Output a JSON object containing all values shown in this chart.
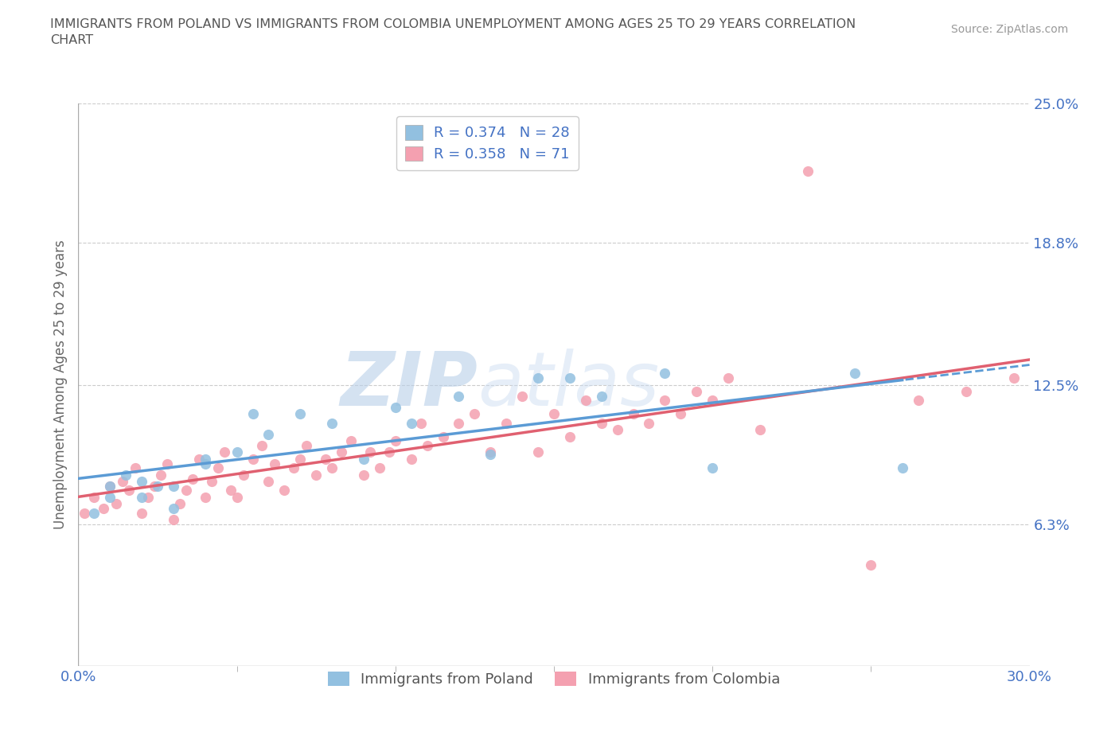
{
  "title": "IMMIGRANTS FROM POLAND VS IMMIGRANTS FROM COLOMBIA UNEMPLOYMENT AMONG AGES 25 TO 29 YEARS CORRELATION\nCHART",
  "source": "Source: ZipAtlas.com",
  "ylabel": "Unemployment Among Ages 25 to 29 years",
  "xlim": [
    0.0,
    0.3
  ],
  "ylim": [
    0.0,
    0.25
  ],
  "ytick_labels": [
    "6.3%",
    "12.5%",
    "18.8%",
    "25.0%"
  ],
  "ytick_values": [
    0.063,
    0.125,
    0.188,
    0.25
  ],
  "xtick_labels": [
    "0.0%",
    "30.0%"
  ],
  "xtick_values": [
    0.0,
    0.3
  ],
  "xtick_minor": [
    0.05,
    0.1,
    0.15,
    0.2,
    0.25
  ],
  "color_poland": "#92C0E0",
  "color_colombia": "#F4A0B0",
  "line_color_poland": "#5B9BD5",
  "line_color_colombia": "#E06070",
  "legend_R_poland": "R = 0.374",
  "legend_N_poland": "N = 28",
  "legend_R_colombia": "R = 0.358",
  "legend_N_colombia": "N = 71",
  "watermark_zip": "ZIP",
  "watermark_atlas": "atlas",
  "poland_scatter_x": [
    0.005,
    0.01,
    0.01,
    0.015,
    0.02,
    0.02,
    0.025,
    0.03,
    0.03,
    0.04,
    0.04,
    0.05,
    0.055,
    0.06,
    0.07,
    0.08,
    0.09,
    0.1,
    0.105,
    0.12,
    0.13,
    0.145,
    0.155,
    0.165,
    0.185,
    0.2,
    0.245,
    0.26
  ],
  "poland_scatter_y": [
    0.068,
    0.075,
    0.08,
    0.085,
    0.075,
    0.082,
    0.08,
    0.07,
    0.08,
    0.092,
    0.09,
    0.095,
    0.112,
    0.103,
    0.112,
    0.108,
    0.092,
    0.115,
    0.108,
    0.12,
    0.094,
    0.128,
    0.128,
    0.12,
    0.13,
    0.088,
    0.13,
    0.088
  ],
  "colombia_scatter_x": [
    0.002,
    0.005,
    0.008,
    0.01,
    0.012,
    0.014,
    0.016,
    0.018,
    0.02,
    0.022,
    0.024,
    0.026,
    0.028,
    0.03,
    0.032,
    0.034,
    0.036,
    0.038,
    0.04,
    0.042,
    0.044,
    0.046,
    0.048,
    0.05,
    0.052,
    0.055,
    0.058,
    0.06,
    0.062,
    0.065,
    0.068,
    0.07,
    0.072,
    0.075,
    0.078,
    0.08,
    0.083,
    0.086,
    0.09,
    0.092,
    0.095,
    0.098,
    0.1,
    0.105,
    0.108,
    0.11,
    0.115,
    0.12,
    0.125,
    0.13,
    0.135,
    0.14,
    0.145,
    0.15,
    0.155,
    0.16,
    0.165,
    0.17,
    0.175,
    0.18,
    0.185,
    0.19,
    0.195,
    0.2,
    0.205,
    0.215,
    0.23,
    0.25,
    0.265,
    0.28,
    0.295
  ],
  "colombia_scatter_y": [
    0.068,
    0.075,
    0.07,
    0.08,
    0.072,
    0.082,
    0.078,
    0.088,
    0.068,
    0.075,
    0.08,
    0.085,
    0.09,
    0.065,
    0.072,
    0.078,
    0.083,
    0.092,
    0.075,
    0.082,
    0.088,
    0.095,
    0.078,
    0.075,
    0.085,
    0.092,
    0.098,
    0.082,
    0.09,
    0.078,
    0.088,
    0.092,
    0.098,
    0.085,
    0.092,
    0.088,
    0.095,
    0.1,
    0.085,
    0.095,
    0.088,
    0.095,
    0.1,
    0.092,
    0.108,
    0.098,
    0.102,
    0.108,
    0.112,
    0.095,
    0.108,
    0.12,
    0.095,
    0.112,
    0.102,
    0.118,
    0.108,
    0.105,
    0.112,
    0.108,
    0.118,
    0.112,
    0.122,
    0.118,
    0.128,
    0.105,
    0.22,
    0.045,
    0.118,
    0.122,
    0.128
  ]
}
